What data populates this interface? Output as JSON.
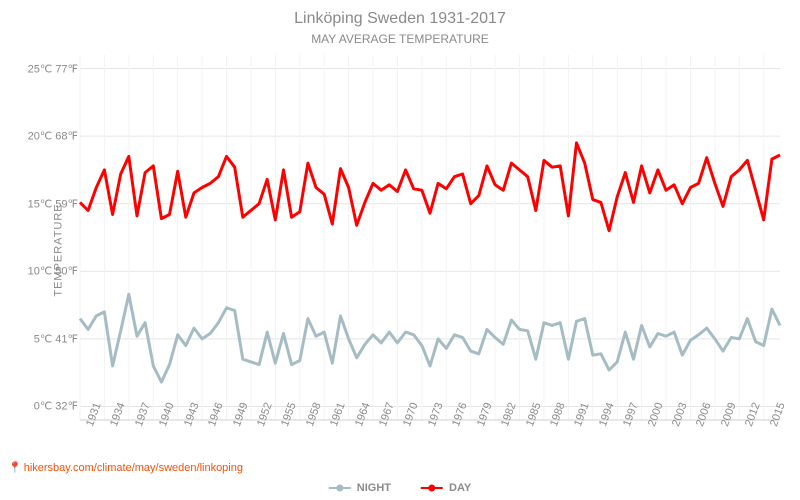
{
  "title": "Linköping Sweden 1931-2017",
  "subtitle": "MAY AVERAGE TEMPERATURE",
  "y_axis_label": "TEMPERATURE",
  "attribution": {
    "pin": "📍",
    "text": "hikersbay.com/climate/may/sweden/linkoping"
  },
  "legend": {
    "night": "NIGHT",
    "day": "DAY"
  },
  "chart": {
    "type": "line",
    "xlim": [
      1931,
      2017
    ],
    "ylim_c": [
      -1,
      26
    ],
    "y_ticks": [
      {
        "c": 0,
        "label": "0℃ 32℉"
      },
      {
        "c": 5,
        "label": "5℃ 41℉"
      },
      {
        "c": 10,
        "label": "10℃ 50℉"
      },
      {
        "c": 15,
        "label": "15℃ 59℉"
      },
      {
        "c": 20,
        "label": "20℃ 68℉"
      },
      {
        "c": 25,
        "label": "25℃ 77℉"
      }
    ],
    "x_ticks": [
      1931,
      1934,
      1937,
      1940,
      1943,
      1946,
      1949,
      1952,
      1955,
      1958,
      1961,
      1964,
      1967,
      1970,
      1973,
      1976,
      1979,
      1982,
      1985,
      1988,
      1991,
      1994,
      1997,
      2000,
      2003,
      2006,
      2009,
      2012,
      2015
    ],
    "colors": {
      "night": "#a6bcc4",
      "day": "#ff0000",
      "grid": "#e5e5e5",
      "axis": "#cfcfcf",
      "text": "#8a8a8a",
      "attribution": "#ff4d00",
      "background": "#ffffff"
    },
    "line_width": 3,
    "marker_size": 7,
    "title_fontsize": 16,
    "subtitle_fontsize": 12,
    "tick_fontsize": 11,
    "series": {
      "day": {
        "years": [
          1931,
          1932,
          1933,
          1934,
          1935,
          1936,
          1937,
          1938,
          1939,
          1940,
          1941,
          1942,
          1943,
          1944,
          1945,
          1946,
          1947,
          1948,
          1949,
          1950,
          1951,
          1953,
          1954,
          1955,
          1956,
          1957,
          1958,
          1959,
          1960,
          1961,
          1962,
          1963,
          1964,
          1965,
          1966,
          1967,
          1968,
          1969,
          1970,
          1971,
          1972,
          1973,
          1974,
          1975,
          1976,
          1977,
          1978,
          1979,
          1980,
          1981,
          1982,
          1983,
          1984,
          1985,
          1986,
          1987,
          1988,
          1989,
          1990,
          1991,
          1992,
          1993,
          1994,
          1995,
          1996,
          1997,
          1998,
          1999,
          2000,
          2001,
          2002,
          2003,
          2004,
          2005,
          2006,
          2007,
          2008,
          2009,
          2010,
          2011,
          2012,
          2013,
          2014,
          2015,
          2016,
          2017
        ],
        "values": [
          15.1,
          14.5,
          16.2,
          17.5,
          14.2,
          17.2,
          18.5,
          14.1,
          17.3,
          17.8,
          13.9,
          14.2,
          17.4,
          14.0,
          15.8,
          16.2,
          16.5,
          17.0,
          18.5,
          17.7,
          14.0,
          15.0,
          16.8,
          13.8,
          17.5,
          14.0,
          14.4,
          18.0,
          16.2,
          15.7,
          13.5,
          17.6,
          16.2,
          13.4,
          15.1,
          16.5,
          16.0,
          16.4,
          15.9,
          17.5,
          16.1,
          16.0,
          14.3,
          16.5,
          16.1,
          17.0,
          17.2,
          15.0,
          15.6,
          17.8,
          16.4,
          16.0,
          18.0,
          17.5,
          17.0,
          14.5,
          18.2,
          17.7,
          17.8,
          14.1,
          19.5,
          18.0,
          15.3,
          15.1,
          13.0,
          15.5,
          17.3,
          15.1,
          17.8,
          15.8,
          17.5,
          16.0,
          16.4,
          15.0,
          16.2,
          16.5,
          18.4,
          16.5,
          14.8,
          17.0,
          17.5,
          18.2,
          16.0,
          13.8,
          18.3,
          18.6
        ]
      },
      "night": {
        "years": [
          1931,
          1932,
          1933,
          1934,
          1935,
          1936,
          1937,
          1938,
          1939,
          1940,
          1941,
          1942,
          1943,
          1944,
          1945,
          1946,
          1947,
          1948,
          1949,
          1950,
          1951,
          1953,
          1954,
          1955,
          1956,
          1957,
          1958,
          1959,
          1960,
          1961,
          1962,
          1963,
          1964,
          1965,
          1966,
          1967,
          1968,
          1969,
          1970,
          1971,
          1972,
          1973,
          1974,
          1975,
          1976,
          1977,
          1978,
          1979,
          1980,
          1981,
          1982,
          1983,
          1984,
          1985,
          1986,
          1987,
          1988,
          1989,
          1990,
          1991,
          1992,
          1993,
          1994,
          1995,
          1996,
          1997,
          1998,
          1999,
          2000,
          2001,
          2002,
          2003,
          2004,
          2005,
          2006,
          2007,
          2008,
          2009,
          2010,
          2011,
          2012,
          2013,
          2014,
          2015,
          2016,
          2017
        ],
        "values": [
          6.5,
          5.7,
          6.7,
          7.0,
          3.0,
          5.6,
          8.3,
          5.2,
          6.2,
          3.0,
          1.8,
          3.1,
          5.3,
          4.5,
          5.8,
          5.0,
          5.4,
          6.2,
          7.3,
          7.1,
          3.5,
          3.1,
          5.5,
          3.2,
          5.4,
          3.1,
          3.4,
          6.5,
          5.2,
          5.5,
          3.2,
          6.7,
          5.0,
          3.6,
          4.6,
          5.3,
          4.7,
          5.5,
          4.7,
          5.5,
          5.3,
          4.5,
          3.0,
          5.0,
          4.3,
          5.3,
          5.1,
          4.1,
          3.9,
          5.7,
          5.1,
          4.6,
          6.4,
          5.7,
          5.6,
          3.5,
          6.2,
          6.0,
          6.2,
          3.5,
          6.3,
          6.5,
          3.8,
          3.9,
          2.7,
          3.3,
          5.5,
          3.5,
          6.0,
          4.4,
          5.4,
          5.2,
          5.5,
          3.8,
          4.9,
          5.3,
          5.8,
          5.0,
          4.1,
          5.1,
          5.0,
          6.5,
          4.8,
          4.5,
          7.2,
          6.0
        ]
      }
    }
  }
}
